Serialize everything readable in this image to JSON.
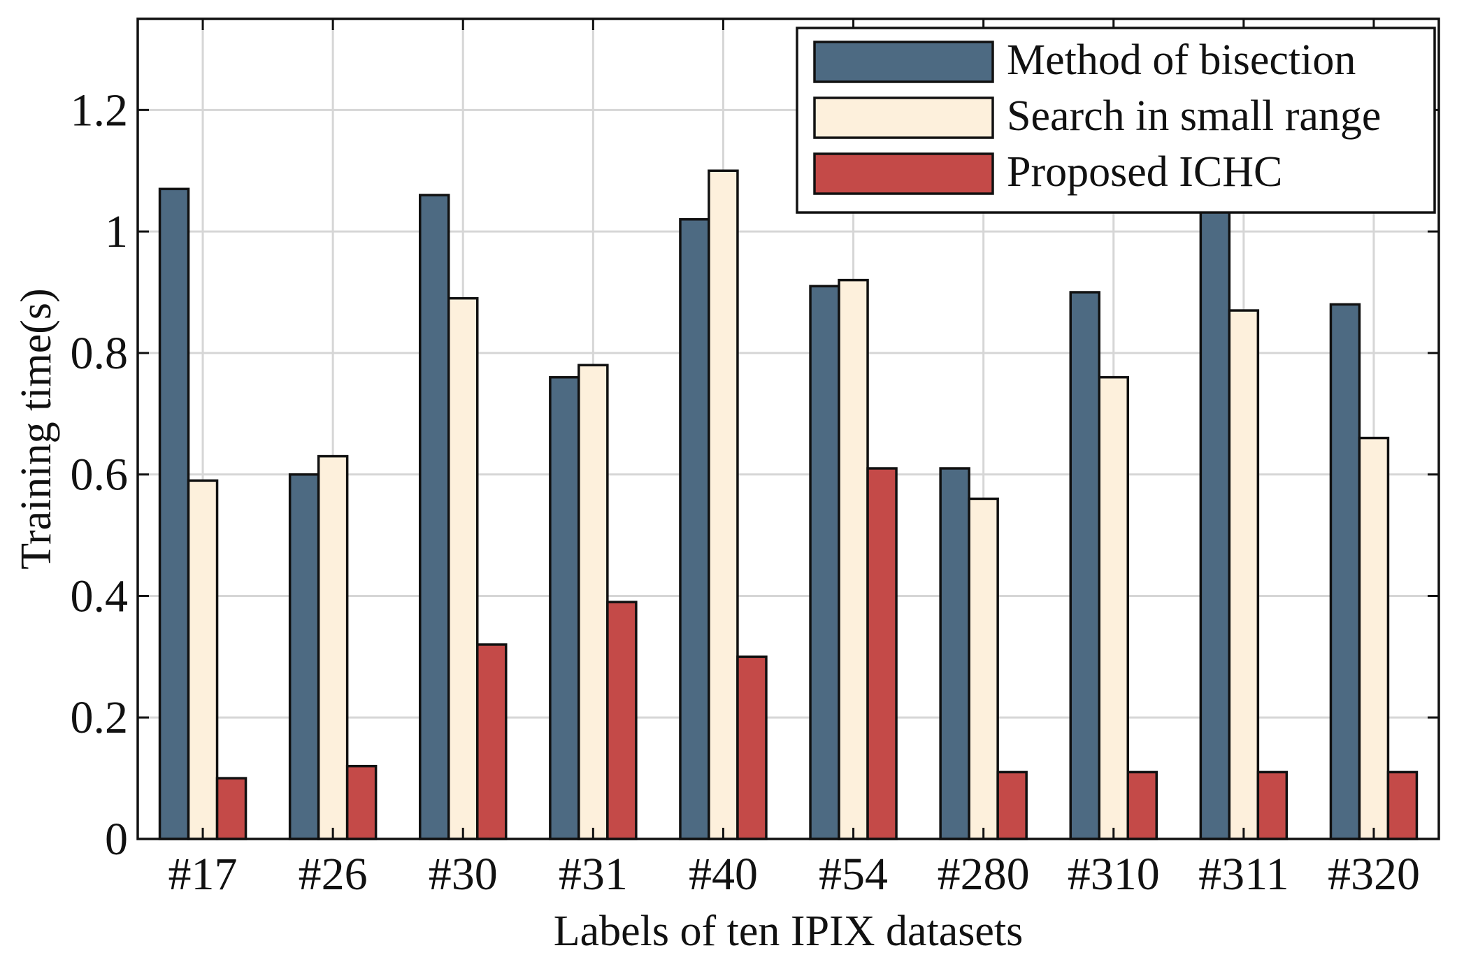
{
  "chart_data": {
    "type": "bar",
    "title": "",
    "xlabel": "Labels of ten IPIX datasets",
    "ylabel": "Training time(s)",
    "categories": [
      "#17",
      "#26",
      "#30",
      "#31",
      "#40",
      "#54",
      "#280",
      "#310",
      "#311",
      "#320"
    ],
    "ylim": [
      0,
      1.35
    ],
    "yticks": [
      0,
      0.2,
      0.4,
      0.6,
      0.8,
      1,
      1.2
    ],
    "ytick_labels": [
      "0",
      "0.2",
      "0.4",
      "0.6",
      "0.8",
      "1",
      "1.2"
    ],
    "grid": true,
    "legend_position": "top-right",
    "series": [
      {
        "name": "Method of bisection",
        "color": "#4d6a82",
        "values": [
          1.07,
          0.6,
          1.06,
          0.76,
          1.02,
          0.91,
          0.61,
          0.9,
          1.04,
          0.88
        ]
      },
      {
        "name": "Search in small range",
        "color": "#fdf0dc",
        "values": [
          0.59,
          0.63,
          0.89,
          0.78,
          1.1,
          0.92,
          0.56,
          0.76,
          0.87,
          0.66
        ]
      },
      {
        "name": "Proposed ICHC",
        "color": "#c44a48",
        "values": [
          0.1,
          0.12,
          0.32,
          0.39,
          0.3,
          0.61,
          0.11,
          0.11,
          0.11,
          0.11
        ]
      }
    ]
  }
}
